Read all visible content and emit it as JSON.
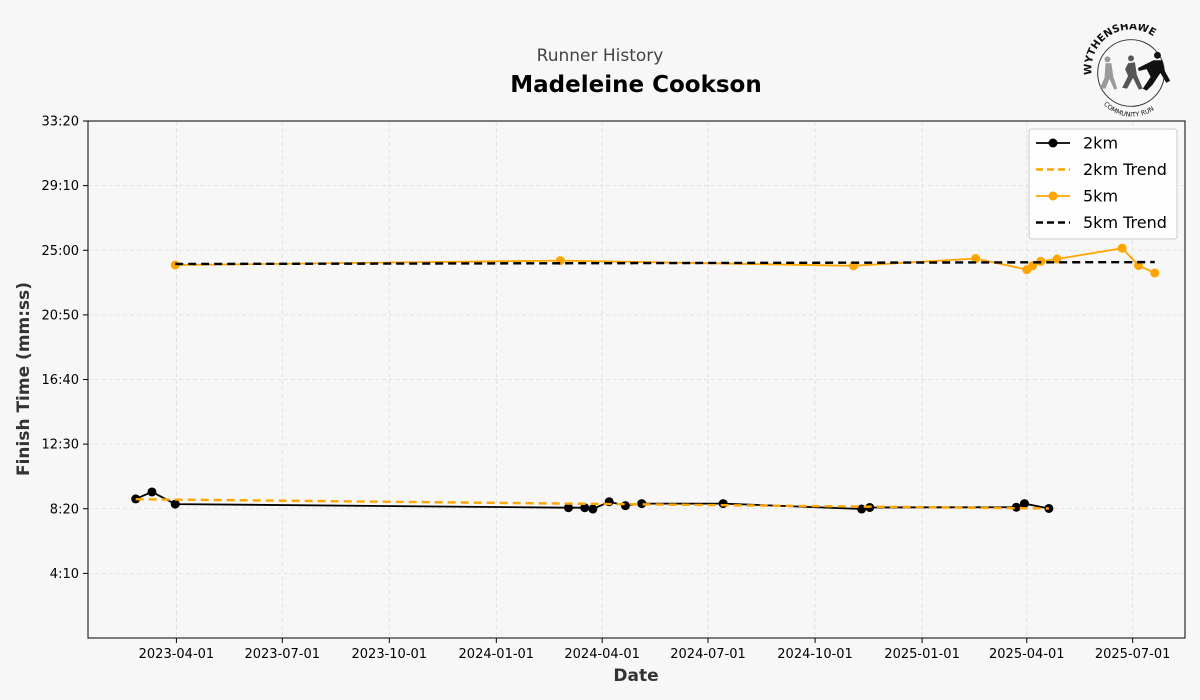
{
  "header": {
    "supertitle": "Runner History",
    "title": "Madeleine Cookson"
  },
  "logo": {
    "text_top": "WYTHENSHAWE",
    "text_bottom": "COMMUNITY RUN",
    "icon": "runners-logo"
  },
  "chart_data": {
    "type": "line",
    "xlabel": "Date",
    "ylabel": "Finish Time (mm:ss)",
    "x_type": "date",
    "xlim": [
      "2023-01-15",
      "2025-08-15"
    ],
    "ylim_seconds": [
      0,
      2000
    ],
    "y_tick_labels": [
      "4:10",
      "8:20",
      "12:30",
      "16:40",
      "20:50",
      "25:00",
      "29:10",
      "33:20"
    ],
    "y_tick_values_seconds": [
      250,
      500,
      750,
      1000,
      1250,
      1500,
      1750,
      2000
    ],
    "x_tick_labels": [
      "2023-04-01",
      "2023-07-01",
      "2023-10-01",
      "2024-01-01",
      "2024-04-01",
      "2024-07-01",
      "2024-10-01",
      "2025-01-01",
      "2025-04-01",
      "2025-07-01"
    ],
    "grid": true,
    "legend_position": "top-right",
    "series": [
      {
        "name": "2km",
        "color": "#000000",
        "style": "solid",
        "marker": "circle",
        "points": [
          {
            "x": "2023-02-25",
            "y": 538
          },
          {
            "x": "2023-03-11",
            "y": 565
          },
          {
            "x": "2023-03-31",
            "y": 518
          },
          {
            "x": "2024-03-03",
            "y": 504
          },
          {
            "x": "2024-03-17",
            "y": 504
          },
          {
            "x": "2024-03-24",
            "y": 499
          },
          {
            "x": "2024-04-07",
            "y": 527
          },
          {
            "x": "2024-04-21",
            "y": 512
          },
          {
            "x": "2024-05-05",
            "y": 520
          },
          {
            "x": "2024-07-14",
            "y": 520
          },
          {
            "x": "2024-11-10",
            "y": 499
          },
          {
            "x": "2024-11-17",
            "y": 505
          },
          {
            "x": "2025-03-23",
            "y": 506
          },
          {
            "x": "2025-03-30",
            "y": 520
          },
          {
            "x": "2025-04-20",
            "y": 501
          }
        ]
      },
      {
        "name": "2km Trend",
        "color": "#FFA500",
        "style": "dashed",
        "marker": "none",
        "points": [
          {
            "x": "2023-02-25",
            "y": 537
          },
          {
            "x": "2025-04-20",
            "y": 501
          }
        ]
      },
      {
        "name": "5km",
        "color": "#FFA500",
        "style": "solid",
        "marker": "circle",
        "points": [
          {
            "x": "2023-03-31",
            "y": 1443
          },
          {
            "x": "2024-02-25",
            "y": 1460
          },
          {
            "x": "2024-11-03",
            "y": 1440
          },
          {
            "x": "2025-02-16",
            "y": 1468
          },
          {
            "x": "2025-04-01",
            "y": 1425
          },
          {
            "x": "2025-04-06",
            "y": 1440
          },
          {
            "x": "2025-04-13",
            "y": 1457
          },
          {
            "x": "2025-04-27",
            "y": 1466
          },
          {
            "x": "2025-06-22",
            "y": 1508
          },
          {
            "x": "2025-07-06",
            "y": 1441
          },
          {
            "x": "2025-07-20",
            "y": 1412
          }
        ]
      },
      {
        "name": "5km Trend",
        "color": "#000000",
        "style": "dashed",
        "marker": "none",
        "points": [
          {
            "x": "2023-03-31",
            "y": 1447
          },
          {
            "x": "2025-07-20",
            "y": 1454
          }
        ]
      }
    ]
  }
}
